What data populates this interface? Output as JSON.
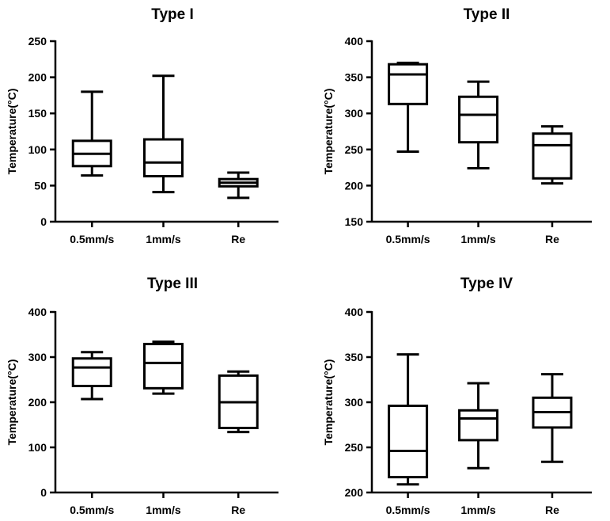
{
  "chart_data": [
    {
      "type": "box",
      "title": "Type I",
      "ylabel": "Temperature(°C)",
      "xlabel": "",
      "ylim": [
        0,
        250
      ],
      "yticks": [
        0,
        50,
        100,
        150,
        200,
        250
      ],
      "categories": [
        "0.5mm/s",
        "1mm/s",
        "Re"
      ],
      "boxes": [
        {
          "min": 64,
          "q1": 77,
          "median": 94,
          "q3": 112,
          "max": 180
        },
        {
          "min": 41,
          "q1": 63,
          "median": 82,
          "q3": 114,
          "max": 202
        },
        {
          "min": 33,
          "q1": 49,
          "median": 54,
          "q3": 59,
          "max": 68
        }
      ]
    },
    {
      "type": "box",
      "title": "Type II",
      "ylabel": "Temperature(°C)",
      "xlabel": "",
      "ylim": [
        150,
        400
      ],
      "yticks": [
        150,
        200,
        250,
        300,
        350,
        400
      ],
      "categories": [
        "0.5mm/s",
        "1mm/s",
        "Re"
      ],
      "boxes": [
        {
          "min": 247,
          "q1": 313,
          "median": 354,
          "q3": 368,
          "max": 370
        },
        {
          "min": 224,
          "q1": 260,
          "median": 298,
          "q3": 323,
          "max": 344
        },
        {
          "min": 203,
          "q1": 210,
          "median": 256,
          "q3": 272,
          "max": 282
        }
      ]
    },
    {
      "type": "box",
      "title": "Type III",
      "ylabel": "Temperature(°C)",
      "xlabel": "",
      "ylim": [
        0,
        400
      ],
      "yticks": [
        0,
        100,
        200,
        300,
        400
      ],
      "categories": [
        "0.5mm/s",
        "1mm/s",
        "Re"
      ],
      "boxes": [
        {
          "min": 207,
          "q1": 236,
          "median": 277,
          "q3": 297,
          "max": 311
        },
        {
          "min": 219,
          "q1": 231,
          "median": 287,
          "q3": 329,
          "max": 334
        },
        {
          "min": 134,
          "q1": 143,
          "median": 200,
          "q3": 259,
          "max": 268
        }
      ]
    },
    {
      "type": "box",
      "title": "Type IV",
      "ylabel": "Temperature(°C)",
      "xlabel": "",
      "ylim": [
        200,
        400
      ],
      "yticks": [
        200,
        250,
        300,
        350,
        400
      ],
      "categories": [
        "0.5mm/s",
        "1mm/s",
        "Re"
      ],
      "boxes": [
        {
          "min": 209,
          "q1": 217,
          "median": 246,
          "q3": 296,
          "max": 353
        },
        {
          "min": 227,
          "q1": 258,
          "median": 282,
          "q3": 291,
          "max": 321
        },
        {
          "min": 234,
          "q1": 272,
          "median": 289,
          "q3": 305,
          "max": 331
        }
      ]
    }
  ]
}
